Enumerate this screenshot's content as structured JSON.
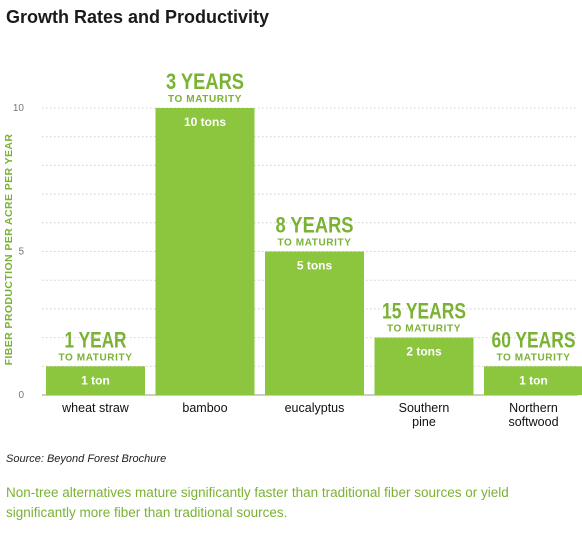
{
  "page": {
    "title": "Growth Rates and Productivity",
    "source": "Source: Beyond Forest Brochure",
    "caption": "Non-tree alternatives mature significantly faster than traditional fiber sources or yield significantly more fiber than traditional sources."
  },
  "colors": {
    "bar": "#8cc63f",
    "accent": "#7ab233",
    "grid": "#cfcfcf",
    "axis_text": "#777777",
    "category_text": "#111111"
  },
  "chart_data": {
    "type": "bar",
    "title": "Growth Rates and Productivity",
    "ylabel": "FIBER PRODUCTION PER ACRE PER YEAR",
    "xlabel": "",
    "ylim": [
      0,
      10
    ],
    "yticks": [
      "0",
      "5",
      "10"
    ],
    "grid": true,
    "categories": [
      [
        "wheat straw"
      ],
      [
        "bamboo"
      ],
      [
        "eucalyptus"
      ],
      [
        "Southern",
        "pine"
      ],
      [
        "Northern",
        "softwood"
      ]
    ],
    "values": [
      1,
      10,
      5,
      2,
      1
    ],
    "value_labels": [
      "1 ton",
      "10 tons",
      "5 tons",
      "2 tons",
      "1 ton"
    ],
    "maturity_years": [
      "1 YEAR",
      "3 YEARS",
      "8 YEARS",
      "15 YEARS",
      "60 YEARS"
    ],
    "maturity_subtitle": "TO MATURITY"
  }
}
